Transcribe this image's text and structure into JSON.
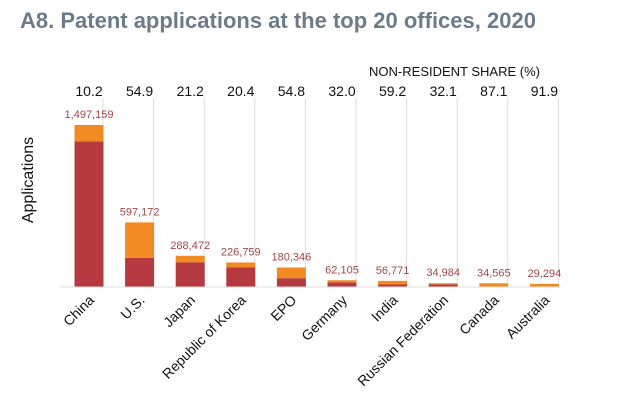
{
  "title": "A8. Patent applications at the top 20 offices, 2020",
  "chart_data": {
    "type": "bar",
    "stacked": true,
    "title": "A8. Patent applications at the top 20 offices, 2020",
    "xlabel": "",
    "ylabel": "Applications",
    "share_header": "NON-RESIDENT SHARE (%)",
    "categories": [
      "China",
      "U.S.",
      "Japan",
      "Republic of Korea",
      "EPO",
      "Germany",
      "India",
      "Russian Federation",
      "Canada",
      "Australia"
    ],
    "totals": [
      1497159,
      597172,
      288472,
      226759,
      180346,
      62105,
      56771,
      34984,
      34565,
      29294
    ],
    "total_labels": [
      "1,497,159",
      "597,172",
      "288,472",
      "226,759",
      "180,346",
      "62,105",
      "56,771",
      "34,984",
      "34,565",
      "29,294"
    ],
    "non_resident_share": [
      "10.2",
      "54.9",
      "21.2",
      "20.4",
      "54.8",
      "32.0",
      "59.2",
      "32.1",
      "87.1",
      "91.9"
    ],
    "series": [
      {
        "name": "",
        "color": "#b5393f",
        "role": "bottom segment",
        "values": [
          1344365,
          269327,
          227318,
          180501,
          81517,
          42232,
          23163,
          23754,
          4460,
          2373
        ]
      },
      {
        "name": "",
        "color": "#f28a24",
        "role": "top segment",
        "values": [
          152794,
          327845,
          61154,
          46258,
          98829,
          19873,
          33608,
          11230,
          30105,
          26921
        ]
      }
    ],
    "ylim": [
      0,
      1497159
    ],
    "grid": "vertical lines at categories",
    "legend": "none"
  }
}
